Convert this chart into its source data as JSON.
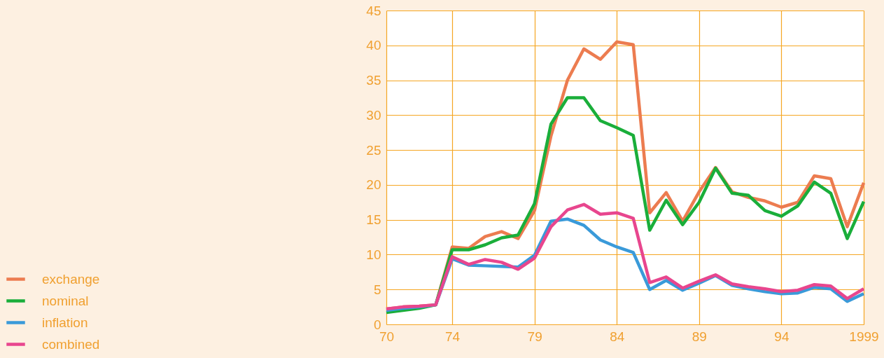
{
  "chart_data": {
    "type": "line",
    "x": [
      1970,
      1971,
      1972,
      1973,
      1974,
      1975,
      1976,
      1977,
      1978,
      1979,
      1980,
      1981,
      1982,
      1983,
      1984,
      1985,
      1986,
      1987,
      1988,
      1989,
      1990,
      1991,
      1992,
      1993,
      1994,
      1995,
      1996,
      1997,
      1998,
      1999
    ],
    "series": [
      {
        "name": "exchange",
        "color": "#ec7c50",
        "values": [
          2.2,
          2.5,
          2.6,
          2.8,
          11.1,
          10.9,
          12.6,
          13.3,
          12.3,
          16.3,
          27,
          35,
          39.5,
          38,
          40.5,
          40.1,
          16,
          18.9,
          14.8,
          19,
          22.5,
          19,
          18.2,
          17.7,
          16.8,
          17.5,
          21.3,
          20.9,
          14,
          20.3
        ]
      },
      {
        "name": "nominal",
        "color": "#1aae3a",
        "values": [
          1.7,
          2,
          2.3,
          2.8,
          10.7,
          10.7,
          11.4,
          12.4,
          12.8,
          17.3,
          28.7,
          32.5,
          32.5,
          29.2,
          28.2,
          27.1,
          13.5,
          17.8,
          14.3,
          17.5,
          22.4,
          18.8,
          18.5,
          16.3,
          15.5,
          17,
          20.4,
          18.8,
          12.3,
          17.6
        ]
      },
      {
        "name": "inflation",
        "color": "#3a9ad9",
        "values": [
          2,
          2.3,
          2.5,
          2.8,
          9.4,
          8.5,
          8.4,
          8.3,
          8.2,
          9.9,
          14.8,
          15.1,
          14.2,
          12.1,
          11.1,
          10.3,
          5,
          6.3,
          4.9,
          5.9,
          7,
          5.6,
          5.1,
          4.7,
          4.4,
          4.5,
          5.3,
          5.1,
          3.3,
          4.4
        ]
      },
      {
        "name": "combined",
        "color": "#e8468e",
        "values": [
          2.2,
          2.5,
          2.6,
          2.8,
          9.7,
          8.6,
          9.3,
          8.9,
          7.9,
          9.5,
          14,
          16.4,
          17.2,
          15.8,
          16,
          15.2,
          6,
          6.8,
          5.2,
          6.2,
          7.1,
          5.8,
          5.4,
          5.1,
          4.7,
          4.9,
          5.7,
          5.5,
          3.7,
          5.1
        ]
      }
    ],
    "xlim": [
      1970,
      1999
    ],
    "xticks": [
      {
        "value": 1970,
        "label": "70"
      },
      {
        "value": 1974,
        "label": "74"
      },
      {
        "value": 1979,
        "label": "79"
      },
      {
        "value": 1984,
        "label": "84"
      },
      {
        "value": 1989,
        "label": "89"
      },
      {
        "value": 1994,
        "label": "94"
      },
      1999
    ],
    "ylim": [
      0,
      45
    ],
    "yticks": [
      0,
      5,
      10,
      15,
      20,
      25,
      30,
      35,
      40,
      45
    ],
    "grid": true,
    "legend": "bottom left",
    "marker": "none",
    "line_style": "solid"
  }
}
